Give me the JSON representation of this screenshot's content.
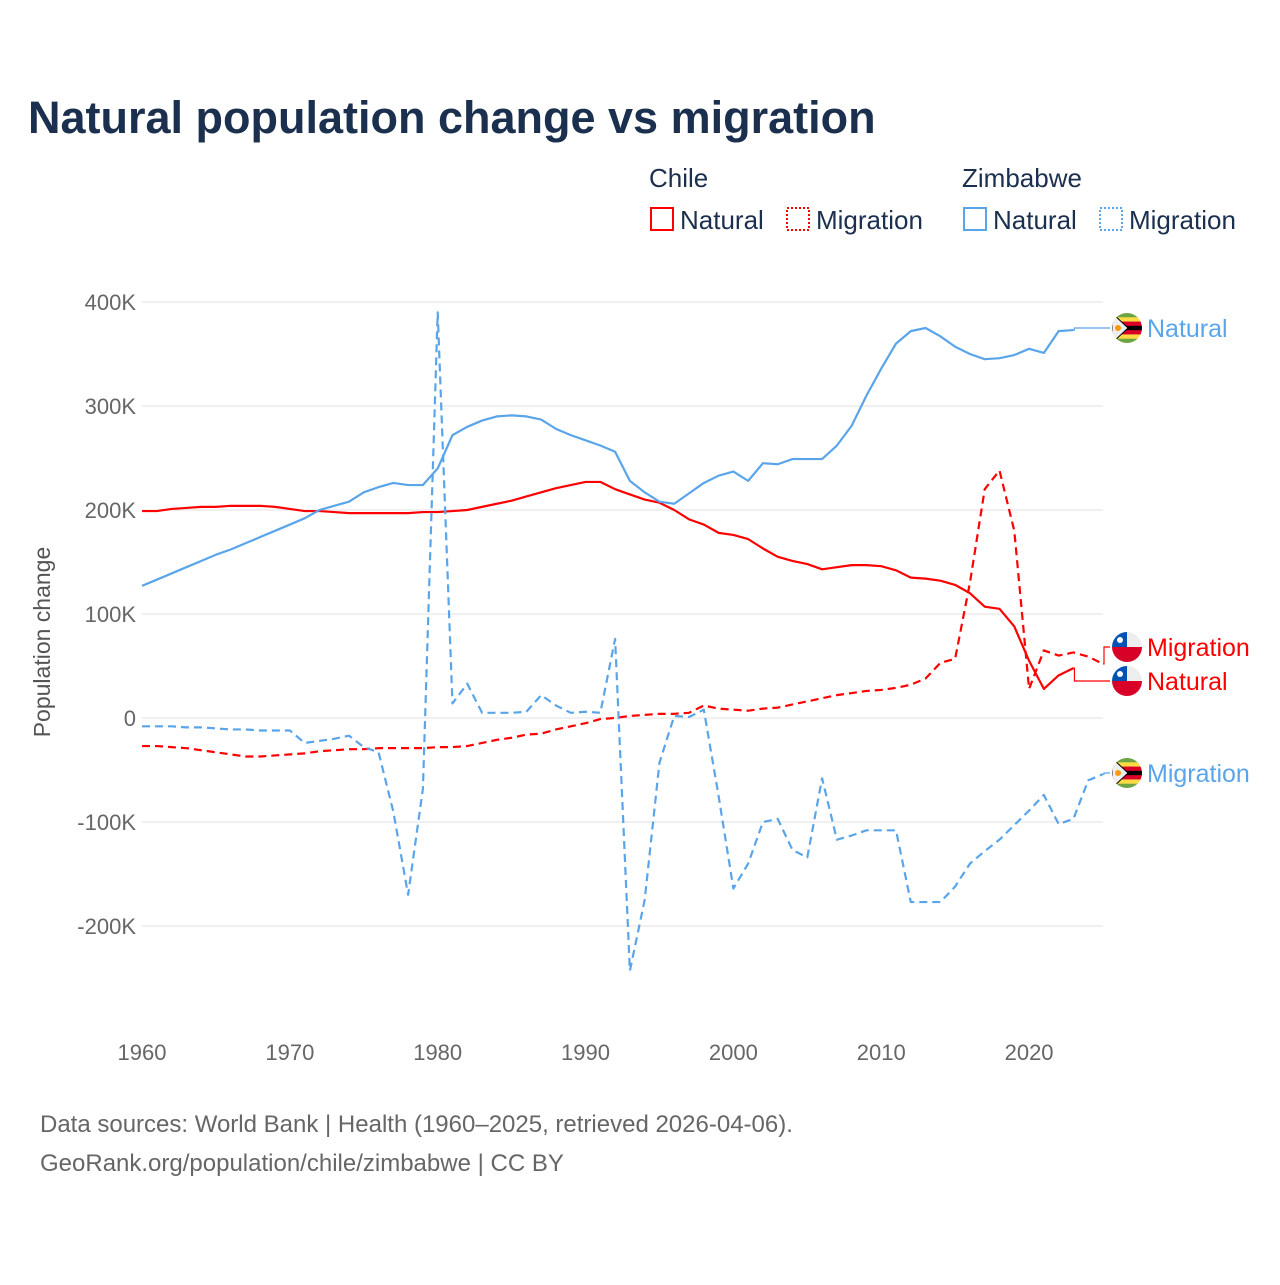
{
  "chart_data": {
    "type": "line",
    "title": "Natural population change vs migration",
    "xlabel": "",
    "ylabel": "Population change",
    "xlim": [
      1960,
      2025
    ],
    "ylim": [
      -250000,
      400000
    ],
    "grid": true,
    "x_ticks": [
      1960,
      1970,
      1980,
      1990,
      2000,
      2010,
      2020
    ],
    "x_tick_labels": [
      "1960",
      "1970",
      "1980",
      "1990",
      "2000",
      "2010",
      "2020"
    ],
    "y_ticks": [
      400000,
      300000,
      200000,
      100000,
      0,
      -100000,
      -200000
    ],
    "y_tick_labels": [
      "400K",
      "300K",
      "200K",
      "100K",
      "0",
      "-100K",
      "-200K"
    ],
    "legend": {
      "placement": "top-right",
      "groups": [
        {
          "title": "Chile",
          "items": [
            "Natural",
            "Migration"
          ]
        },
        {
          "title": "Zimbabwe",
          "items": [
            "Natural",
            "Migration"
          ]
        }
      ]
    },
    "colors": {
      "Chile": "#ff0000",
      "Zimbabwe": "#5aa5ea"
    },
    "series": [
      {
        "name": "Chile Natural",
        "country": "Chile",
        "kind": "Natural",
        "style": "solid",
        "end_label": "Natural",
        "start_year": 1960,
        "values": [
          199000,
          199000,
          201000,
          202000,
          203000,
          203000,
          204000,
          204000,
          204000,
          203000,
          201000,
          199000,
          199000,
          198000,
          197000,
          197000,
          197000,
          197000,
          197000,
          198000,
          198000,
          199000,
          200000,
          203000,
          206000,
          209000,
          213000,
          217000,
          221000,
          224000,
          227000,
          227000,
          220000,
          215000,
          210000,
          207000,
          200000,
          191000,
          186000,
          178000,
          176000,
          172000,
          163000,
          155000,
          151000,
          148000,
          143000,
          145000,
          147000,
          147000,
          146000,
          142000,
          135000,
          134000,
          132000,
          128000,
          120000,
          107000,
          105000,
          88000,
          55000,
          28000,
          41000,
          48000
        ]
      },
      {
        "name": "Chile Migration",
        "country": "Chile",
        "kind": "Migration",
        "style": "dashed",
        "end_label": "Migration",
        "start_year": 1960,
        "values": [
          -27000,
          -27000,
          -28000,
          -29000,
          -31000,
          -33000,
          -35000,
          -37000,
          -37000,
          -36000,
          -35000,
          -34000,
          -32000,
          -31000,
          -30000,
          -30000,
          -29000,
          -29000,
          -29000,
          -29000,
          -28000,
          -28000,
          -27000,
          -24000,
          -21000,
          -19000,
          -16000,
          -15000,
          -11000,
          -8000,
          -5000,
          -1000,
          0,
          2000,
          3000,
          4000,
          4000,
          5000,
          12000,
          9000,
          8000,
          7000,
          9000,
          10000,
          13000,
          16000,
          19000,
          22000,
          24000,
          26000,
          27000,
          29000,
          32000,
          38000,
          53000,
          57000,
          130000,
          220000,
          238000,
          180000,
          28000,
          65000,
          60000,
          63000,
          59000,
          52000
        ]
      },
      {
        "name": "Zimbabwe Natural",
        "country": "Zimbabwe",
        "kind": "Natural",
        "style": "solid",
        "end_label": "Natural",
        "start_year": 1960,
        "values": [
          127000,
          133000,
          139000,
          145000,
          151000,
          157000,
          162000,
          168000,
          174000,
          180000,
          186000,
          192000,
          200000,
          204000,
          208000,
          217000,
          222000,
          226000,
          224000,
          224000,
          240000,
          272000,
          280000,
          286000,
          290000,
          291000,
          290000,
          287000,
          278000,
          272000,
          267000,
          262000,
          256000,
          228000,
          217000,
          208000,
          206000,
          216000,
          226000,
          233000,
          237000,
          228000,
          245000,
          244000,
          249000,
          249000,
          249000,
          262000,
          281000,
          310000,
          336000,
          360000,
          372000,
          375000,
          367000,
          357000,
          350000,
          345000,
          346000,
          349000,
          355000,
          351000,
          372000,
          373000
        ]
      },
      {
        "name": "Zimbabwe Migration",
        "country": "Zimbabwe",
        "kind": "Migration",
        "style": "dashed",
        "end_label": "Migration",
        "start_year": 1960,
        "values": [
          -8000,
          -8000,
          -8000,
          -9000,
          -9000,
          -10000,
          -11000,
          -11000,
          -12000,
          -12000,
          -12000,
          -24000,
          -22000,
          -20000,
          -17000,
          -28000,
          -33000,
          -90000,
          -170000,
          -68000,
          390000,
          14000,
          33000,
          5000,
          5000,
          5000,
          6000,
          22000,
          12000,
          5000,
          6000,
          5000,
          76000,
          -243000,
          -175000,
          -43000,
          2000,
          1000,
          8000,
          -75000,
          -164000,
          -140000,
          -100000,
          -97000,
          -127000,
          -134000,
          -58000,
          -117000,
          -113000,
          -108000,
          -108000,
          -108000,
          -177000,
          -177000,
          -177000,
          -162000,
          -140000,
          -128000,
          -117000,
          -103000,
          -89000,
          -74000,
          -102000,
          -97000,
          -60000,
          -54000
        ]
      }
    ]
  },
  "footer": {
    "line1": "Data sources: World Bank | Health (1960–2025, retrieved 2026-04-06).",
    "line2": "GeoRank.org/population/chile/zimbabwe | CC BY"
  }
}
